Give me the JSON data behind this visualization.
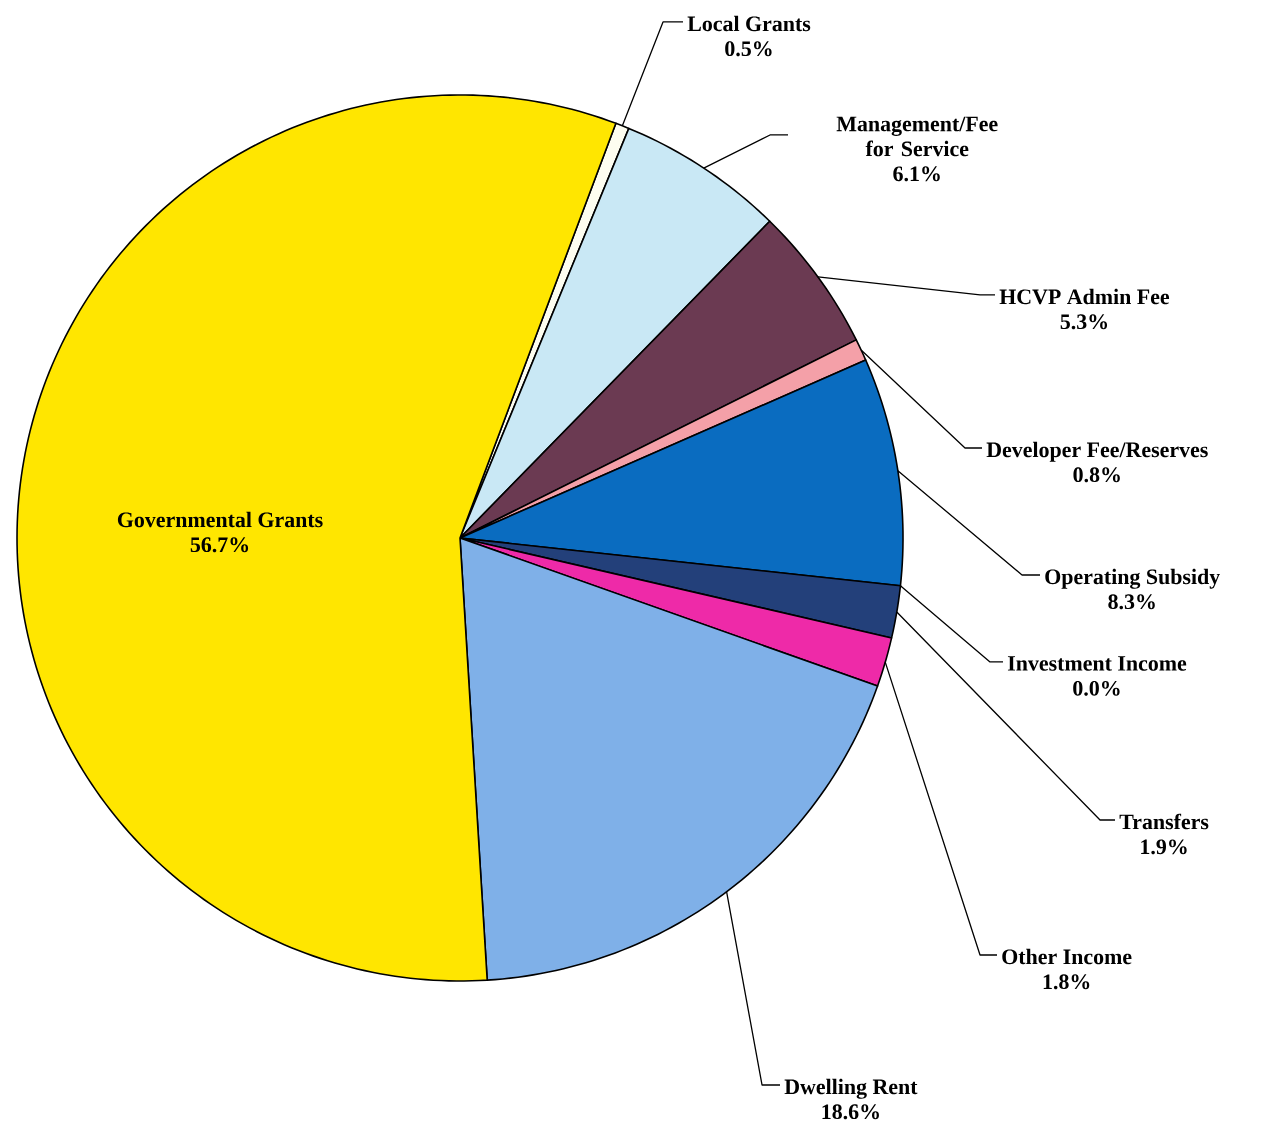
{
  "chart_data": {
    "type": "pie",
    "categories": [
      "Local Grants",
      "Management/Fee for Service",
      "HCVP Admin Fee",
      "Developer Fee/Reserves",
      "Operating Subsidy",
      "Investment Income",
      "Transfers",
      "Other Income",
      "Dwelling Rent",
      "Governmental Grants"
    ],
    "values": [
      0.5,
      6.1,
      5.3,
      0.8,
      8.3,
      0.0,
      1.9,
      1.8,
      18.6,
      56.7
    ],
    "value_labels": [
      "0.5%",
      "6.1%",
      "5.3%",
      "0.8%",
      "8.3%",
      "0.0%",
      "1.9%",
      "1.8%",
      "18.6%",
      "56.7%"
    ],
    "colors": [
      "#fdfdf0",
      "#c9e8f5",
      "#6b3a52",
      "#f4a0a8",
      "#0a6cc0",
      "#1a1a1a",
      "#23407a",
      "#ee2aa8",
      "#7fb0e8",
      "#ffe600"
    ]
  }
}
